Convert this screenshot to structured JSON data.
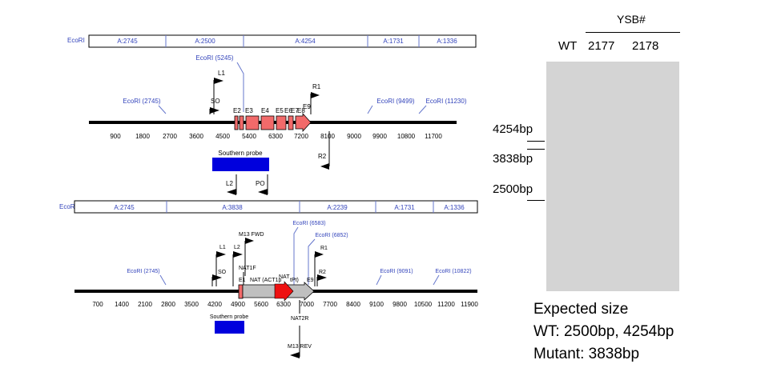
{
  "map1": {
    "ecori_label": "EcoRI",
    "fragments": [
      "A:2745",
      "A:2500",
      "A:4254",
      "A:1731",
      "A:1336"
    ],
    "sites": [
      "EcoRI (5245)",
      "EcoRI (2745)",
      "EcoRI (9499)",
      "EcoRI (11230)"
    ],
    "primers": [
      "L1",
      "SO",
      "R1",
      "R2",
      "L2",
      "PO"
    ],
    "exons": [
      "E2",
      "E3",
      "E4",
      "E5",
      "E6",
      "E7",
      "E8",
      "E9"
    ],
    "ticks": [
      "900",
      "1800",
      "2700",
      "3600",
      "4500",
      "5400",
      "6300",
      "7200",
      "8100",
      "9000",
      "9900",
      "10800",
      "11700"
    ],
    "probe": "Southern probe"
  },
  "map2": {
    "ecori_label": "EcoRI",
    "fragments": [
      "A:2745",
      "A:3838",
      "A:2239",
      "A:1731",
      "A:1336"
    ],
    "sites": [
      "EcoRI (2745)",
      "EcoRI (6583)",
      "EcoRI (6852)",
      "EcoRI (9091)",
      "EcoRI (10822)"
    ],
    "primers": [
      "M13 FWD",
      "L1",
      "L2",
      "R1",
      "SO",
      "R2",
      "NAT1F",
      "NAT2R",
      "M13 REV"
    ],
    "exons": [
      "E1",
      "E9"
    ],
    "nat_label": "NAT (ACT1p",
    "nat_label2": "NAT",
    "nat_label3": "tPt)",
    "ticks": [
      "700",
      "1400",
      "2100",
      "2800",
      "3500",
      "4200",
      "4900",
      "5600",
      "6300",
      "7000",
      "7700",
      "8400",
      "9100",
      "9800",
      "10500",
      "11200",
      "11900"
    ],
    "probe": "Southern probe"
  },
  "gel": {
    "header": "YSB#",
    "lanes": [
      "WT",
      "2177",
      "2178"
    ],
    "markers": [
      "4254bp",
      "3838bp",
      "2500bp"
    ]
  },
  "expected": {
    "title": "Expected size",
    "wt": "WT: 2500bp, 4254bp",
    "mutant": "Mutant: 3838bp"
  },
  "colors": {
    "label_blue": "#3344bb",
    "exon_red": "#f26a6a",
    "nat_red": "#ee1111",
    "probe_blue": "#0000dd",
    "gel_gray": "#d4d4d4"
  }
}
